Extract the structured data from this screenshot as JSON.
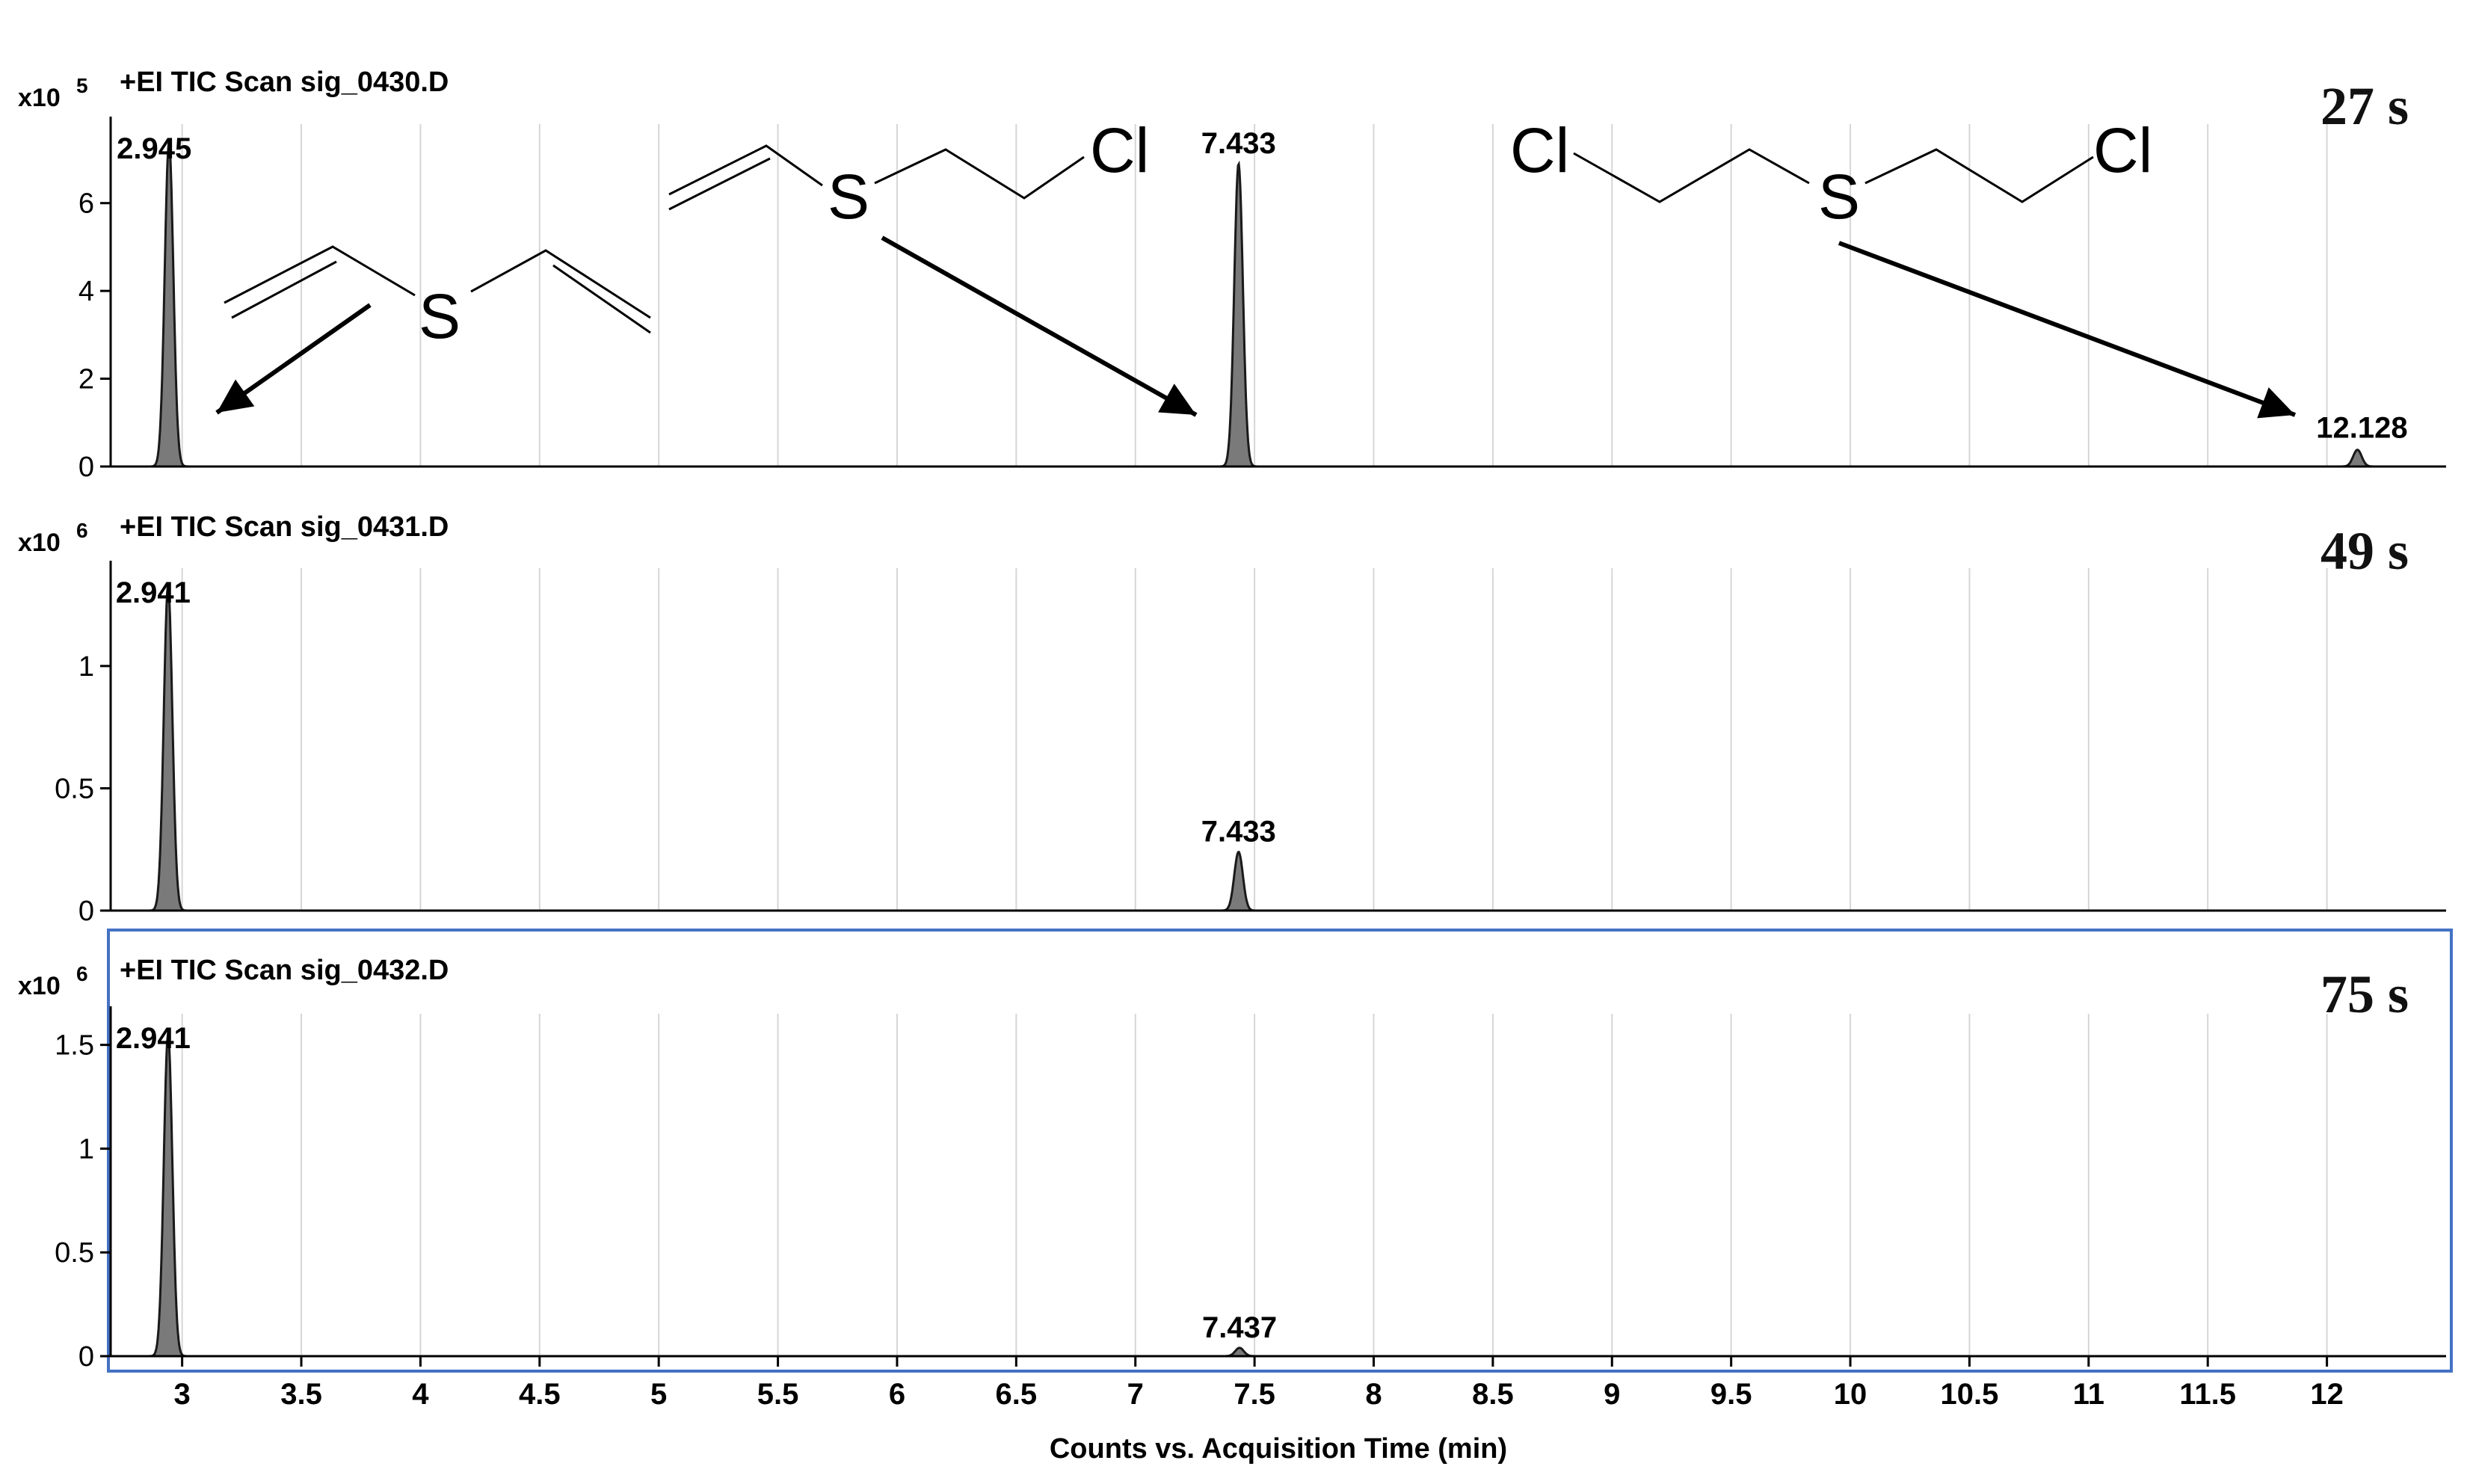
{
  "chart_data": {
    "type": "line",
    "xlabel": "Counts vs. Acquisition Time (min)",
    "xlim": [
      2.7,
      12.5
    ],
    "x_ticks": [
      "3",
      "3.5",
      "4",
      "4.5",
      "5",
      "5.5",
      "6",
      "6.5",
      "7",
      "7.5",
      "8",
      "8.5",
      "9",
      "9.5",
      "10",
      "10.5",
      "11",
      "11.5",
      "12"
    ],
    "panels": [
      {
        "title": "+EI TIC Scan sig_0430.D",
        "scale_base": "x10",
        "scale_exp": "5",
        "label": "27 s",
        "ylim": [
          0,
          7.8
        ],
        "y_ticks": [
          "0",
          "2",
          "4",
          "6"
        ],
        "selected": false,
        "peaks": [
          {
            "rt": 2.945,
            "label": "2.945",
            "height": 7.4
          },
          {
            "rt": 7.433,
            "label": "7.433",
            "height": 6.9
          },
          {
            "rt": 12.128,
            "label": "12.128",
            "height": 0.38
          }
        ]
      },
      {
        "title": "+EI TIC Scan sig_0431.D",
        "scale_base": "x10",
        "scale_exp": "6",
        "label": "49 s",
        "ylim": [
          0,
          1.4
        ],
        "y_ticks": [
          "0",
          "0.5",
          "1"
        ],
        "selected": false,
        "peaks": [
          {
            "rt": 2.941,
            "label": "2.941",
            "height": 1.33
          },
          {
            "rt": 7.433,
            "label": "7.433",
            "height": 0.24
          }
        ]
      },
      {
        "title": "+EI TIC Scan sig_0432.D",
        "scale_base": "x10",
        "scale_exp": "6",
        "label": "75 s",
        "ylim": [
          0,
          1.65
        ],
        "y_ticks": [
          "0",
          "0.5",
          "1",
          "1.5"
        ],
        "selected": true,
        "peaks": [
          {
            "rt": 2.941,
            "label": "2.941",
            "height": 1.55
          },
          {
            "rt": 7.437,
            "label": "7.437",
            "height": 0.04
          }
        ]
      }
    ],
    "structures": {
      "divinyl_sulfide": [
        "S"
      ],
      "chloroethyl_vinyl_sulfide": [
        "S",
        "Cl"
      ],
      "bis_chloroethyl_sulfide": [
        "Cl",
        "S",
        "Cl"
      ]
    }
  },
  "colors": {
    "trace": "#1a1a1a",
    "peak_fill": "#7a7a7a",
    "grid": "#d6d6d6",
    "selected_border": "#4472c4"
  }
}
